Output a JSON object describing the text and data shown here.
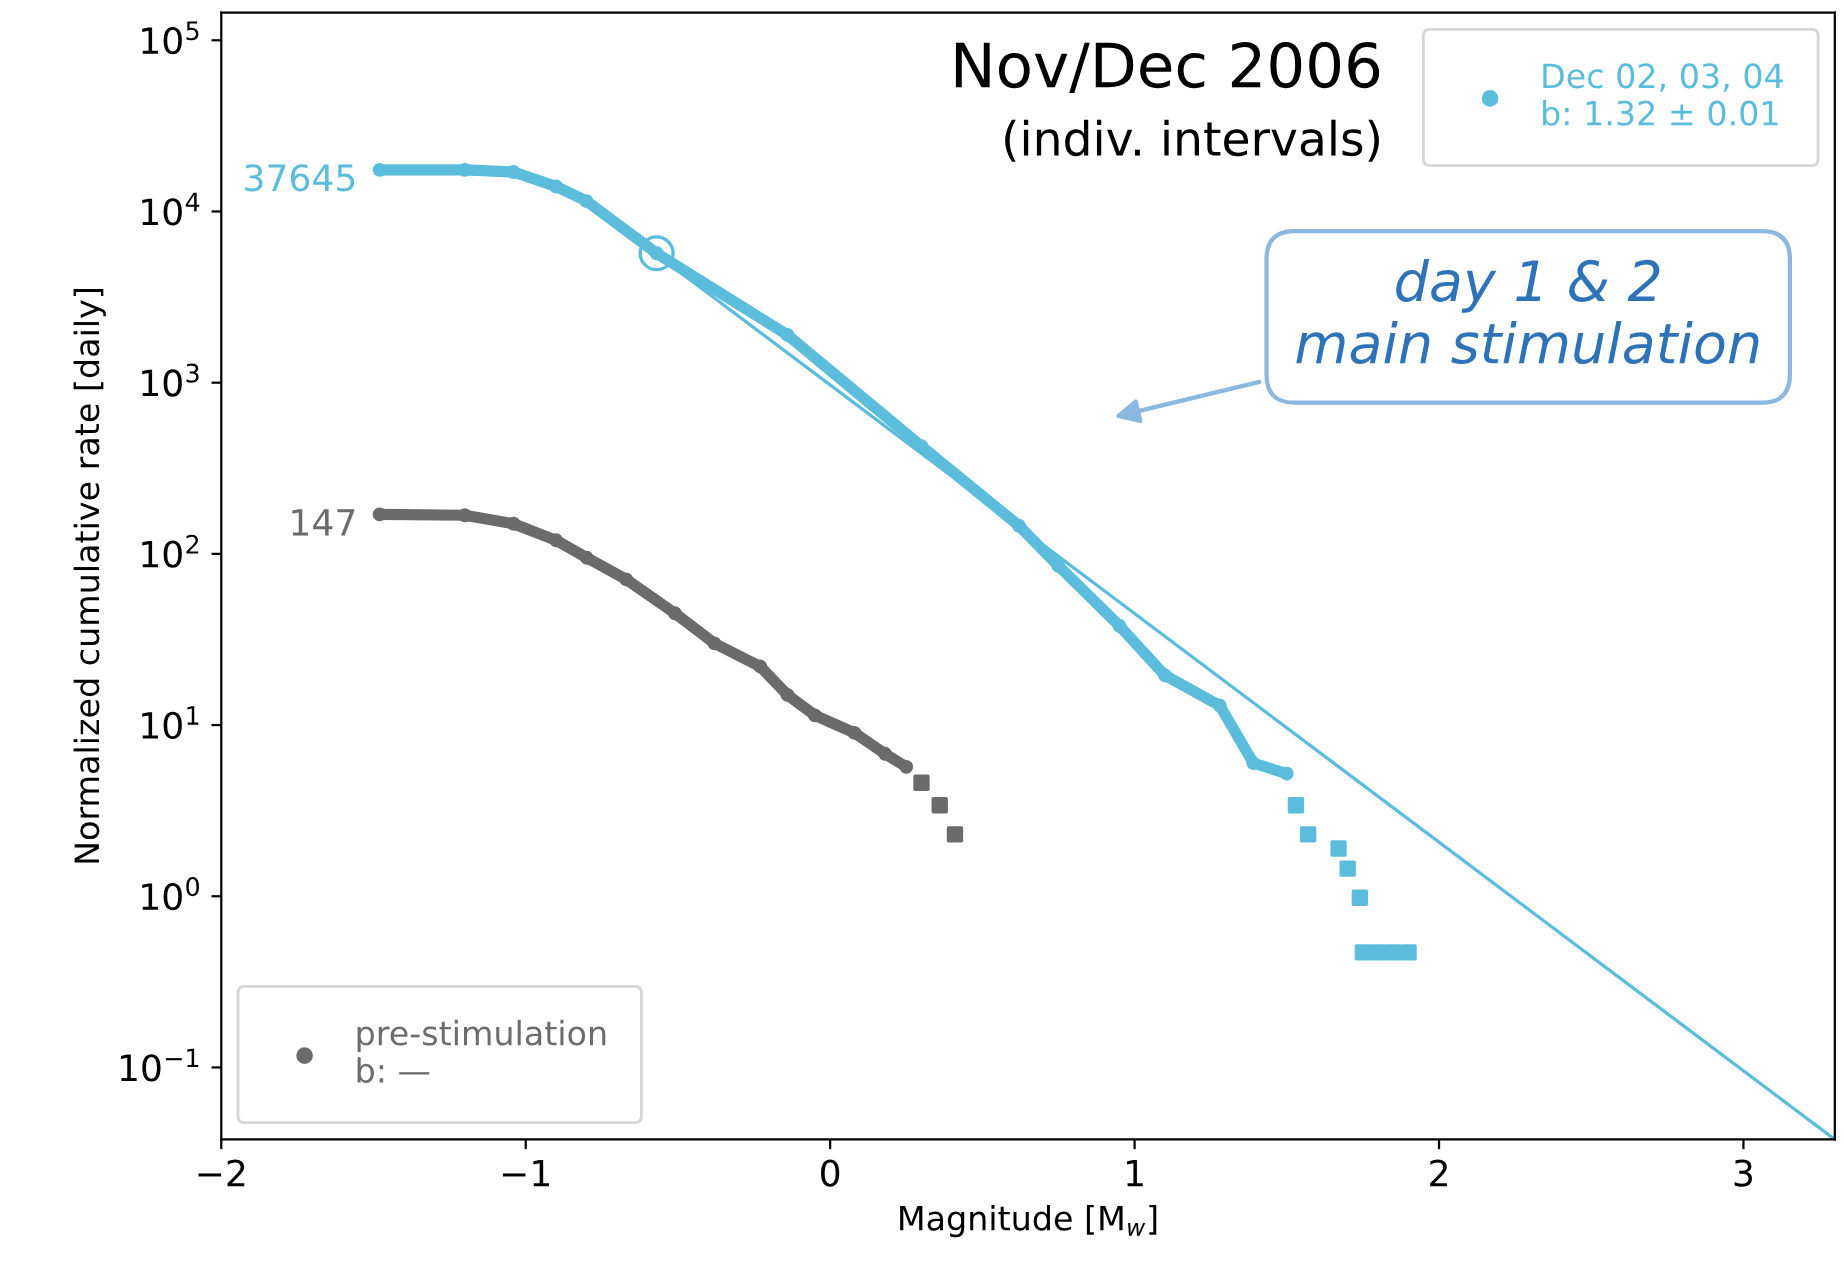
{
  "chart_data": {
    "type": "scatter",
    "title": "Nov/Dec 2006",
    "subtitle": "(indiv. intervals)",
    "xlabel": "Magnitude [M$_{w}$]",
    "ylabel": "Normalized cumulative rate [daily]",
    "log": "y",
    "xlim": [
      -2,
      3.3
    ],
    "ylim": [
      0.038,
      145000
    ],
    "xticks": [
      -2,
      -1,
      0,
      1,
      2,
      3
    ],
    "yticks": [
      {
        "value": 0.1,
        "label": "10$^{−1}$"
      },
      {
        "value": 1,
        "label": "10$^{0}$"
      },
      {
        "value": 10,
        "label": "10$^{1}$"
      },
      {
        "value": 100,
        "label": "10$^{2}$"
      },
      {
        "value": 1000,
        "label": "10$^{3}$"
      },
      {
        "value": 10000,
        "label": "10$^{4}$"
      },
      {
        "value": 100000,
        "label": "10$^{5}$"
      }
    ],
    "grid": false,
    "legend": [
      "bottom left",
      "top right"
    ],
    "series": [
      {
        "name": "pre-stimulation\nb: —",
        "type": "line",
        "marker": "circle",
        "color": "#6b6b6b",
        "x": [
          -1.48,
          -1.2,
          -1.04,
          -0.9,
          -0.8,
          -0.67,
          -0.51,
          -0.38,
          -0.23,
          -0.14,
          -0.05,
          0.08,
          0.18,
          0.25
        ],
        "values": [
          170,
          168,
          150,
          120,
          95,
          71,
          45,
          30,
          22,
          15,
          11.4,
          9,
          6.8,
          5.7
        ]
      },
      {
        "marker": "square",
        "color": "#6b6b6b",
        "x": [
          0.3,
          0.36,
          0.41
        ],
        "values": [
          4.6,
          3.4,
          2.3
        ]
      },
      {
        "name": "Dec 02, 03, 04\nb: 1.32 ± 0.01",
        "type": "line",
        "marker": "circle",
        "color": "#5bbcdc",
        "x": [
          -1.48,
          -1.2,
          -1.04,
          -0.9,
          -0.8,
          -0.57,
          -0.14,
          0.3,
          0.62,
          0.75,
          0.95,
          1.1,
          1.28,
          1.39,
          1.5
        ],
        "values": [
          17500,
          17500,
          17000,
          14000,
          11500,
          5700,
          1900,
          425,
          146,
          85,
          38,
          19.5,
          13,
          6.0,
          5.2
        ]
      },
      {
        "marker": "square",
        "color": "#5bbcdc",
        "x": [
          1.53,
          1.57,
          1.67,
          1.7,
          1.74,
          1.75,
          1.8,
          1.85,
          1.9
        ],
        "values": [
          3.4,
          2.3,
          1.9,
          1.45,
          0.98,
          0.47,
          0.47,
          0.47,
          0.47
        ]
      },
      {
        "type": "line",
        "marker": "none",
        "color": "#5bbcdc",
        "x": [
          -0.57,
          3.3
        ],
        "values": [
          5600,
          0.038
        ]
      },
      {
        "marker": "circle",
        "color": "#5bbcdc",
        "x": [
          -0.57
        ],
        "values": [
          5700
        ]
      }
    ],
    "annotations": [
      {
        "text": "37645",
        "x": -1.48,
        "y": 17500
      },
      {
        "text": "147",
        "x": -1.48,
        "y": 170
      },
      "day 1 & 2\nmain stimulation"
    ]
  }
}
